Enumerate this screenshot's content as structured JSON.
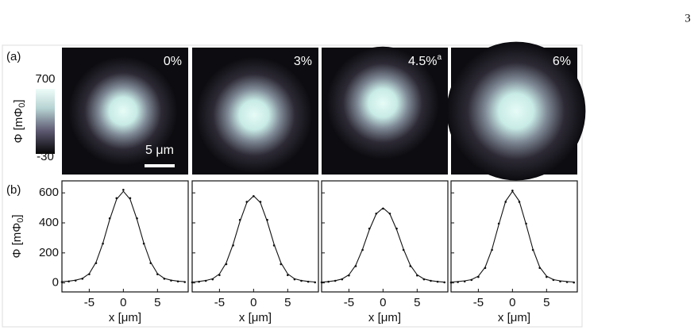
{
  "page_number": "3",
  "panel_a": {
    "label": "(a)",
    "colorbar": {
      "label": "Φ [mΦ",
      "label_sub": "0",
      "label_end": "]",
      "max": 700,
      "min": -30
    },
    "scale_bar": "5 μm",
    "images": [
      {
        "label": "0%"
      },
      {
        "label": "3%"
      },
      {
        "label": "4.5%",
        "sup": "a"
      },
      {
        "label": "6%"
      }
    ]
  },
  "chart_data": {
    "type": "line",
    "label": "(b)",
    "ylabel": "Φ [mΦ",
    "ylabel_sub": "0",
    "ylabel_end": "]",
    "xlabel": "x [μm]",
    "ylim": [
      -60,
      680
    ],
    "yticks": [
      0,
      200,
      400,
      600
    ],
    "xlim": [
      -9,
      9.5
    ],
    "xticks": [
      -5,
      0,
      5
    ],
    "x": [
      -9,
      -8,
      -7,
      -6,
      -5,
      -4,
      -3,
      -2,
      -1,
      0,
      1,
      2,
      3,
      4,
      5,
      6,
      7,
      8,
      9
    ],
    "plots": [
      {
        "fit": [
          8,
          12,
          18,
          30,
          62,
          138,
          265,
          423,
          557,
          610,
          557,
          423,
          265,
          138,
          62,
          30,
          18,
          12,
          8
        ],
        "data": [
          6,
          10,
          16,
          28,
          58,
          132,
          262,
          430,
          565,
          620,
          565,
          430,
          262,
          132,
          58,
          28,
          16,
          10,
          6
        ]
      },
      {
        "fit": [
          6,
          10,
          16,
          28,
          60,
          135,
          258,
          410,
          535,
          580,
          535,
          410,
          258,
          135,
          60,
          28,
          16,
          10,
          6
        ],
        "data": [
          4,
          8,
          14,
          24,
          52,
          125,
          250,
          420,
          540,
          578,
          540,
          420,
          250,
          125,
          52,
          24,
          14,
          8,
          4
        ]
      },
      {
        "fit": [
          5,
          9,
          15,
          26,
          54,
          118,
          225,
          355,
          460,
          500,
          460,
          355,
          225,
          118,
          54,
          26,
          15,
          9,
          5
        ],
        "data": [
          4,
          8,
          14,
          24,
          50,
          112,
          220,
          362,
          462,
          495,
          462,
          362,
          220,
          112,
          50,
          24,
          14,
          8,
          4
        ]
      },
      {
        "fit": [
          6,
          9,
          14,
          22,
          45,
          105,
          225,
          390,
          545,
          610,
          545,
          390,
          225,
          105,
          45,
          22,
          14,
          9,
          6
        ],
        "data": [
          3,
          6,
          10,
          20,
          40,
          100,
          220,
          395,
          540,
          615,
          540,
          395,
          220,
          100,
          40,
          20,
          10,
          6,
          3
        ]
      }
    ]
  }
}
